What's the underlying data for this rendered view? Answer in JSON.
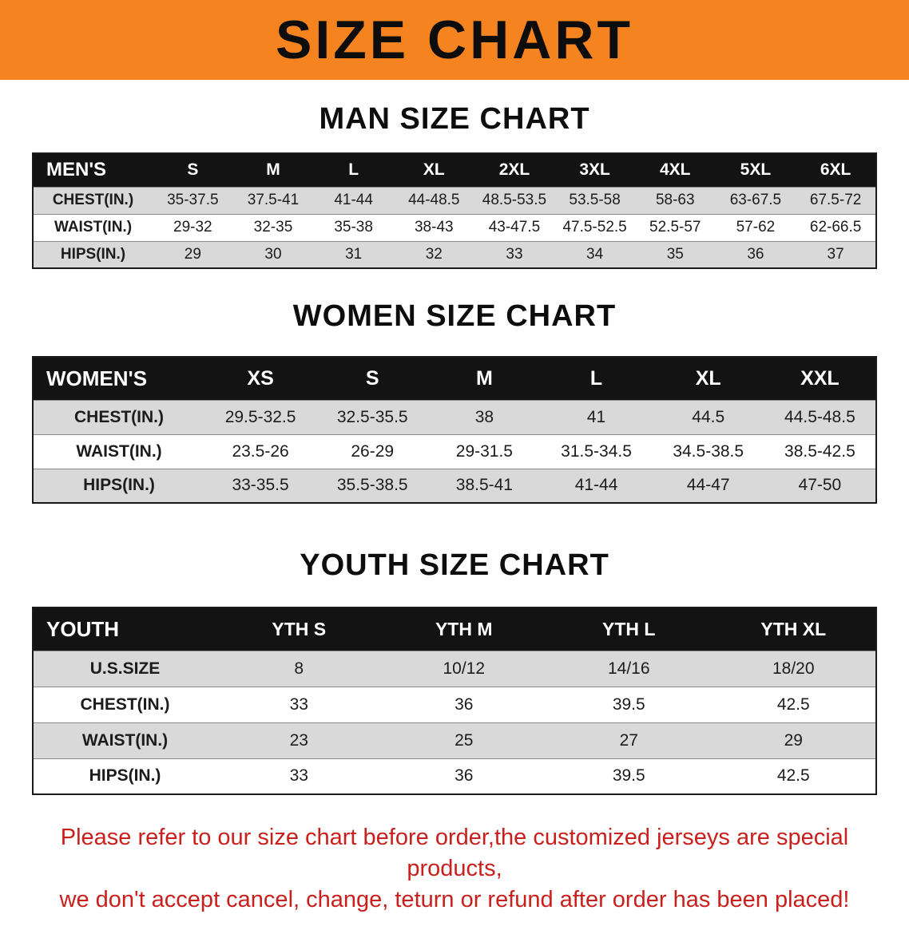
{
  "banner": {
    "title": "SIZE CHART"
  },
  "colors": {
    "banner_bg": "#F5831F",
    "table_header_bg": "#131313",
    "row_shade": "#D9D9D9",
    "disclaimer_text": "#C9201D"
  },
  "men": {
    "heading": "MAN SIZE CHART",
    "label": "MEN'S",
    "columns": [
      "S",
      "M",
      "L",
      "XL",
      "2XL",
      "3XL",
      "4XL",
      "5XL",
      "6XL"
    ],
    "rows": [
      {
        "label": "CHEST(IN.)",
        "values": [
          "35-37.5",
          "37.5-41",
          "41-44",
          "44-48.5",
          "48.5-53.5",
          "53.5-58",
          "58-63",
          "63-67.5",
          "67.5-72"
        ]
      },
      {
        "label": "WAIST(IN.)",
        "values": [
          "29-32",
          "32-35",
          "35-38",
          "38-43",
          "43-47.5",
          "47.5-52.5",
          "52.5-57",
          "57-62",
          "62-66.5"
        ]
      },
      {
        "label": "HIPS(IN.)",
        "values": [
          "29",
          "30",
          "31",
          "32",
          "33",
          "34",
          "35",
          "36",
          "37"
        ]
      }
    ]
  },
  "women": {
    "heading": "WOMEN SIZE CHART",
    "label": "WOMEN'S",
    "columns": [
      "XS",
      "S",
      "M",
      "L",
      "XL",
      "XXL"
    ],
    "rows": [
      {
        "label": "CHEST(IN.)",
        "values": [
          "29.5-32.5",
          "32.5-35.5",
          "38",
          "41",
          "44.5",
          "44.5-48.5"
        ]
      },
      {
        "label": "WAIST(IN.)",
        "values": [
          "23.5-26",
          "26-29",
          "29-31.5",
          "31.5-34.5",
          "34.5-38.5",
          "38.5-42.5"
        ]
      },
      {
        "label": "HIPS(IN.)",
        "values": [
          "33-35.5",
          "35.5-38.5",
          "38.5-41",
          "41-44",
          "44-47",
          "47-50"
        ]
      }
    ]
  },
  "youth": {
    "heading": "YOUTH SIZE CHART",
    "label": "YOUTH",
    "columns": [
      "YTH S",
      "YTH M",
      "YTH L",
      "YTH XL"
    ],
    "rows": [
      {
        "label": "U.S.SIZE",
        "values": [
          "8",
          "10/12",
          "14/16",
          "18/20"
        ]
      },
      {
        "label": "CHEST(IN.)",
        "values": [
          "33",
          "36",
          "39.5",
          "42.5"
        ]
      },
      {
        "label": "WAIST(IN.)",
        "values": [
          "23",
          "25",
          "27",
          "29"
        ]
      },
      {
        "label": "HIPS(IN.)",
        "values": [
          "33",
          "36",
          "39.5",
          "42.5"
        ]
      }
    ]
  },
  "disclaimer": {
    "line1": "Please refer to our size chart before order,the customized jerseys are special products,",
    "line2": "we don't accept cancel, change, teturn or refund after order has been placed!"
  }
}
